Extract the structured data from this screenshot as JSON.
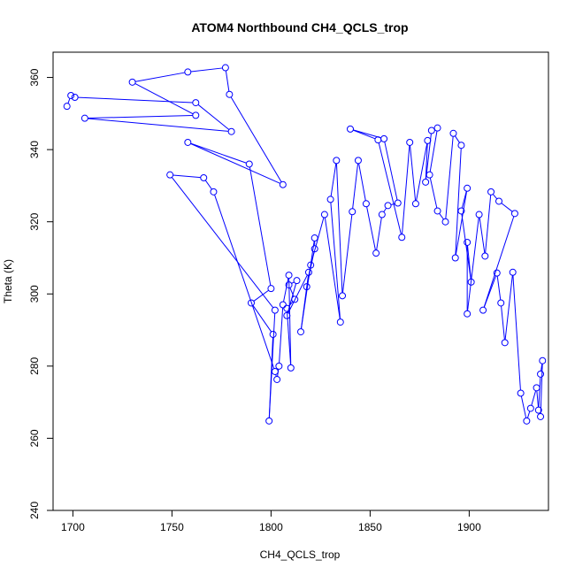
{
  "chart_data": {
    "type": "line",
    "title": "ATOM4 Northbound CH4_QCLS_trop",
    "xlabel": "CH4_QCLS_trop",
    "ylabel": "Theta (K)",
    "xlim": [
      1690,
      1940
    ],
    "ylim": [
      240,
      367
    ],
    "xticks": [
      1700,
      1750,
      1800,
      1850,
      1900
    ],
    "yticks": [
      240,
      260,
      280,
      300,
      320,
      340,
      360
    ],
    "grid": false,
    "markers": "open-circle",
    "color": "#0000ff",
    "series": [
      {
        "points": [
          [
            1697,
            352
          ],
          [
            1699,
            355
          ],
          [
            1701,
            354.5
          ],
          [
            1762,
            353
          ],
          [
            1780,
            345
          ],
          [
            1706,
            348.7
          ],
          [
            1762,
            349.5
          ],
          [
            1730,
            358.7
          ],
          [
            1758,
            361.5
          ],
          [
            1777,
            362.7
          ],
          [
            1779,
            355.3
          ],
          [
            1806,
            330.3
          ],
          [
            1758,
            342
          ],
          [
            1789,
            336
          ],
          [
            1800,
            301.5
          ],
          [
            1790,
            297.5
          ],
          [
            1801,
            288.8
          ],
          [
            1799,
            264.8
          ],
          [
            1802,
            295.5
          ],
          [
            1749,
            333
          ],
          [
            1766,
            332.2
          ],
          [
            1771,
            328.3
          ],
          [
            1802,
            278.5
          ],
          [
            1803,
            276.3
          ],
          [
            1804,
            280
          ],
          [
            1806,
            297
          ],
          [
            1809,
            305.2
          ],
          [
            1810,
            279.5
          ],
          [
            1808,
            296
          ],
          [
            1812,
            298.5
          ],
          [
            1809,
            302.5
          ],
          [
            1813,
            303.7
          ],
          [
            1808,
            294
          ],
          [
            1819,
            306
          ],
          [
            1815,
            289.5
          ],
          [
            1822,
            315.5
          ],
          [
            1822,
            312.5
          ],
          [
            1818,
            302
          ],
          [
            1820,
            308
          ],
          [
            1827,
            322
          ],
          [
            1835,
            292.2
          ],
          [
            1830,
            326.2
          ],
          [
            1833,
            337
          ],
          [
            1836,
            299.5
          ],
          [
            1841,
            322.8
          ],
          [
            1844,
            337
          ],
          [
            1848,
            325
          ],
          [
            1853,
            311.3
          ],
          [
            1856,
            322
          ],
          [
            1859,
            324.5
          ],
          [
            1864,
            325.2
          ],
          [
            1857,
            343
          ],
          [
            1840,
            345.7
          ],
          [
            1854,
            342.7
          ],
          [
            1866,
            315.7
          ],
          [
            1870,
            342
          ],
          [
            1873,
            325
          ],
          [
            1879,
            342.5
          ],
          [
            1878,
            331
          ],
          [
            1881,
            345.3
          ],
          [
            1884,
            346
          ],
          [
            1880,
            333
          ],
          [
            1884,
            323
          ],
          [
            1888,
            320
          ],
          [
            1892,
            344.5
          ],
          [
            1896,
            341.2
          ],
          [
            1893,
            310
          ],
          [
            1899,
            329.3
          ],
          [
            1896,
            323
          ],
          [
            1901,
            303.3
          ],
          [
            1899,
            314.3
          ],
          [
            1899,
            294.5
          ],
          [
            1905,
            322
          ],
          [
            1908,
            310.5
          ],
          [
            1911,
            328.3
          ],
          [
            1915,
            325.7
          ],
          [
            1923,
            322.3
          ],
          [
            1907,
            295.5
          ],
          [
            1914,
            305.8
          ],
          [
            1916,
            297.5
          ],
          [
            1918,
            286.5
          ],
          [
            1922,
            306
          ],
          [
            1926,
            272.5
          ],
          [
            1929,
            264.8
          ],
          [
            1931,
            268.3
          ],
          [
            1934,
            274
          ],
          [
            1935,
            267.8
          ],
          [
            1936,
            277.8
          ],
          [
            1937,
            281.5
          ],
          [
            1936,
            266
          ]
        ]
      }
    ]
  }
}
